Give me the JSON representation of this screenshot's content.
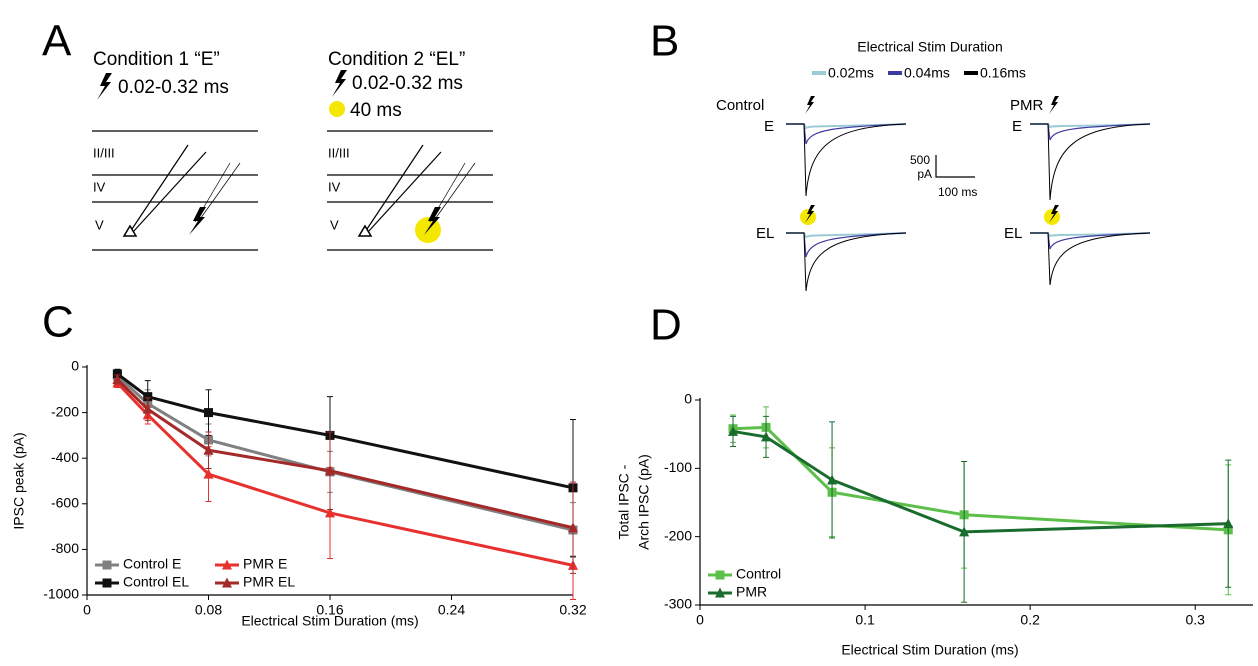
{
  "panel_labels": [
    "A",
    "B",
    "C",
    "D"
  ],
  "panel_a": {
    "conditions": [
      {
        "title": "Condition 1 “E”",
        "stim": "0.02-0.32 ms"
      },
      {
        "title": "Condition 2 “EL”",
        "stim": "0.02-0.32 ms",
        "light": "40 ms"
      }
    ],
    "layers": [
      "II/III",
      "IV",
      "V"
    ]
  },
  "panel_b": {
    "legend_title": "Electrical Stim Duration",
    "legend": [
      {
        "name": "0.02ms",
        "color": "#9ccbd8"
      },
      {
        "name": "0.04ms",
        "color": "#3f3aa0"
      },
      {
        "name": "0.16ms",
        "color": "#000000"
      }
    ],
    "groups": [
      "Control",
      "PMR"
    ],
    "rows": [
      "E",
      "EL"
    ],
    "scale": {
      "amplitude": "500",
      "amplitude_unit": "pA",
      "time": "100 ms"
    }
  },
  "chart_data": [
    {
      "type": "line",
      "x_label": "Electrical Stim Duration (ms)",
      "y_label": "IPSC peak  (pA)",
      "x": [
        0.02,
        0.04,
        0.08,
        0.16,
        0.32
      ],
      "xlim": [
        0,
        0.32
      ],
      "xticks": [
        0,
        0.08,
        0.16,
        0.24,
        0.32
      ],
      "ylim": [
        -1000,
        0
      ],
      "yticks": [
        0,
        -200,
        -400,
        -600,
        -800,
        -1000
      ],
      "legend": "lower left",
      "legend_columns": 2,
      "series": [
        {
          "name": "Control E",
          "color": "#808080",
          "marker": "square",
          "values": [
            -40,
            -160,
            -320,
            -460,
            -715
          ],
          "errors": [
            20,
            60,
            70,
            90,
            120
          ]
        },
        {
          "name": "Control EL",
          "color": "#111111",
          "marker": "square",
          "values": [
            -30,
            -130,
            -200,
            -300,
            -530
          ],
          "errors": [
            20,
            70,
            100,
            170,
            300
          ]
        },
        {
          "name": "PMR E",
          "color": "#e8312f",
          "marker": "triangle",
          "values": [
            -70,
            -210,
            -470,
            -640,
            -870
          ],
          "errors": [
            20,
            40,
            120,
            200,
            150
          ]
        },
        {
          "name": "PMR EL",
          "color": "#a32a28",
          "marker": "triangle",
          "values": [
            -55,
            -185,
            -365,
            -455,
            -705
          ],
          "errors": [
            20,
            50,
            80,
            170,
            200
          ]
        }
      ]
    },
    {
      "type": "line",
      "x_label": "Electrical Stim Duration (ms)",
      "y_label": [
        "Total IPSC -",
        "Arch IPSC (pA)"
      ],
      "x": [
        0.02,
        0.04,
        0.08,
        0.16,
        0.32
      ],
      "xlim": [
        0,
        0.335
      ],
      "xticks": [
        0,
        0.1,
        0.2,
        0.3
      ],
      "ylim": [
        -300,
        0
      ],
      "yticks": [
        0,
        -100,
        -200,
        -300
      ],
      "legend": "lower left",
      "legend_columns": 1,
      "series": [
        {
          "name": "Control",
          "color": "#5cbf4a",
          "marker": "square",
          "values": [
            -42,
            -40,
            -135,
            -168,
            -190
          ],
          "errors": [
            20,
            30,
            65,
            78,
            95
          ]
        },
        {
          "name": "PMR",
          "color": "#1a6b2e",
          "marker": "triangle",
          "values": [
            -46,
            -54,
            -117,
            -193,
            -181
          ],
          "errors": [
            22,
            30,
            85,
            103,
            93
          ]
        }
      ]
    }
  ]
}
